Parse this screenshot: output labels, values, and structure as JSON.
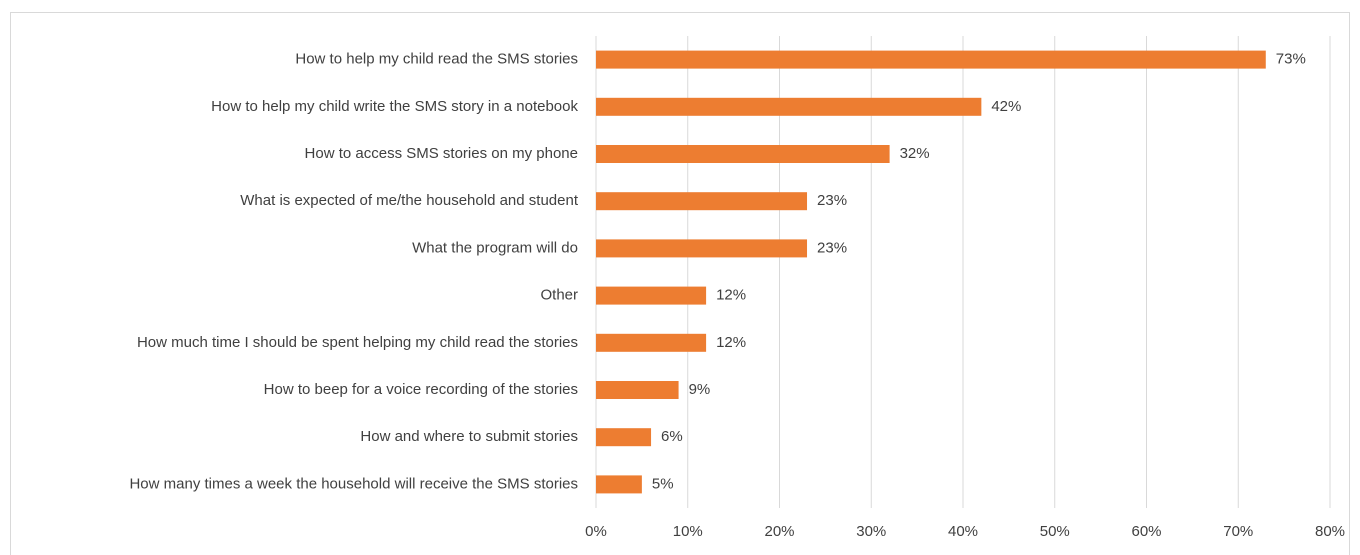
{
  "chart_data": {
    "type": "bar",
    "orientation": "horizontal",
    "categories": [
      "How to help my child read the SMS stories",
      "How to help my child write the SMS story in a notebook",
      "How to access SMS stories on my phone",
      "What is expected of me/the household and student",
      "What the program will do",
      "Other",
      "How much time I should be spent helping my child read the stories",
      "How to beep for a voice recording of the stories",
      "How and where to submit stories",
      "How many times a week the household will receive the SMS stories"
    ],
    "values": [
      73,
      42,
      32,
      23,
      23,
      12,
      12,
      9,
      6,
      5
    ],
    "value_labels": [
      "73%",
      "42%",
      "32%",
      "23%",
      "23%",
      "12%",
      "12%",
      "9%",
      "6%",
      "5%"
    ],
    "color": "#ed7d31",
    "xlim": [
      0,
      80
    ],
    "xticks": [
      {
        "value": 0,
        "label": "0%"
      },
      {
        "value": 10,
        "label": "10%"
      },
      {
        "value": 20,
        "label": "20%"
      },
      {
        "value": 30,
        "label": "30%"
      },
      {
        "value": 40,
        "label": "40%"
      },
      {
        "value": 50,
        "label": "50%"
      },
      {
        "value": 60,
        "label": "60%"
      },
      {
        "value": 70,
        "label": "70%"
      },
      {
        "value": 80,
        "label": "80%"
      }
    ],
    "grid": true
  }
}
